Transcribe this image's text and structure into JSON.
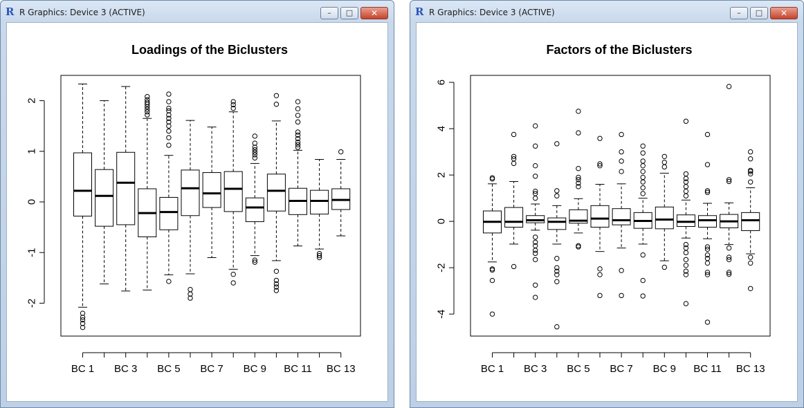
{
  "windows": [
    {
      "title": "R Graphics: Device 3 (ACTIVE)",
      "app_icon": "R",
      "controls": {
        "minimize": "minimize-icon",
        "maximize": "maximize-icon",
        "close": "close-icon"
      }
    },
    {
      "title": "R Graphics: Device 3 (ACTIVE)",
      "app_icon": "R",
      "controls": {
        "minimize": "minimize-icon",
        "maximize": "maximize-icon",
        "close": "close-icon"
      }
    }
  ],
  "chart_data": [
    {
      "type": "box",
      "title": "Loadings of the Biclusters",
      "xlabel": "",
      "ylabel": "",
      "ylim": [
        -2.65,
        2.5
      ],
      "yticks": [
        "-2",
        "-1",
        "0",
        "1",
        "2"
      ],
      "ytick_values": [
        -2,
        -1,
        0,
        1,
        2
      ],
      "xtick_labels": [
        "BC 1",
        "BC 3",
        "BC 5",
        "BC 7",
        "BC 9",
        "BC 11",
        "BC 13"
      ],
      "categories": [
        "BC 1",
        "BC 2",
        "BC 3",
        "BC 4",
        "BC 5",
        "BC 6",
        "BC 7",
        "BC 8",
        "BC 9",
        "BC 10",
        "BC 11",
        "BC 12",
        "BC 13"
      ],
      "boxes": [
        {
          "min": -2.08,
          "q1": -0.28,
          "median": 0.22,
          "q3": 0.97,
          "max": 2.33,
          "outliers": [
            -2.2,
            -2.28,
            -2.33,
            -2.4,
            -2.48
          ]
        },
        {
          "min": -1.62,
          "q1": -0.48,
          "median": 0.12,
          "q3": 0.64,
          "max": 2.0,
          "outliers": []
        },
        {
          "min": -1.76,
          "q1": -0.45,
          "median": 0.38,
          "q3": 0.98,
          "max": 2.28,
          "outliers": []
        },
        {
          "min": -1.74,
          "q1": -0.69,
          "median": -0.22,
          "q3": 0.26,
          "max": 1.65,
          "outliers": [
            1.72,
            1.78,
            1.83,
            1.88,
            1.93,
            1.97,
            2.02,
            2.08
          ]
        },
        {
          "min": -1.44,
          "q1": -0.55,
          "median": -0.2,
          "q3": 0.09,
          "max": 0.92,
          "outliers": [
            1.12,
            1.27,
            1.4,
            1.5,
            1.58,
            1.65,
            1.72,
            1.8,
            1.85,
            1.98,
            2.13,
            -1.57
          ]
        },
        {
          "min": -1.42,
          "q1": -0.27,
          "median": 0.27,
          "q3": 0.63,
          "max": 1.61,
          "outliers": [
            -1.73,
            -1.82,
            -1.9
          ]
        },
        {
          "min": -1.1,
          "q1": -0.11,
          "median": 0.17,
          "q3": 0.58,
          "max": 1.48,
          "outliers": []
        },
        {
          "min": -1.33,
          "q1": -0.19,
          "median": 0.26,
          "q3": 0.6,
          "max": 1.78,
          "outliers": [
            1.85,
            1.92,
            1.98,
            -1.43,
            -1.6
          ]
        },
        {
          "min": -1.06,
          "q1": -0.39,
          "median": -0.11,
          "q3": 0.08,
          "max": 0.76,
          "outliers": [
            0.87,
            0.93,
            0.98,
            1.03,
            1.08,
            1.16,
            1.3,
            -1.15,
            -1.19
          ]
        },
        {
          "min": -1.16,
          "q1": -0.18,
          "median": 0.22,
          "q3": 0.55,
          "max": 1.6,
          "outliers": [
            1.93,
            2.1,
            -1.37,
            -1.55,
            -1.62,
            -1.68,
            -1.75
          ]
        },
        {
          "min": -0.87,
          "q1": -0.25,
          "median": 0.02,
          "q3": 0.27,
          "max": 1.02,
          "outliers": [
            1.08,
            1.13,
            1.18,
            1.25,
            1.32,
            1.38,
            1.58,
            1.71,
            1.84,
            1.98
          ]
        },
        {
          "min": -0.93,
          "q1": -0.24,
          "median": 0.02,
          "q3": 0.23,
          "max": 0.84,
          "outliers": [
            -1.02,
            -1.06,
            -1.1
          ]
        },
        {
          "min": -0.67,
          "q1": -0.15,
          "median": 0.04,
          "q3": 0.26,
          "max": 0.84,
          "outliers": [
            0.99
          ]
        }
      ]
    },
    {
      "type": "box",
      "title": "Factors of the Biclusters",
      "xlabel": "",
      "ylabel": "",
      "ylim": [
        -4.95,
        6.3
      ],
      "yticks": [
        "-4",
        "-2",
        "0",
        "2",
        "4",
        "6"
      ],
      "ytick_values": [
        -4,
        -2,
        0,
        2,
        4,
        6
      ],
      "xtick_labels": [
        "BC 1",
        "BC 3",
        "BC 5",
        "BC 7",
        "BC 9",
        "BC 11",
        "BC 13"
      ],
      "categories": [
        "BC 1",
        "BC 2",
        "BC 3",
        "BC 4",
        "BC 5",
        "BC 6",
        "BC 7",
        "BC 8",
        "BC 9",
        "BC 10",
        "BC 11",
        "BC 12",
        "BC 13"
      ],
      "boxes": [
        {
          "min": -1.75,
          "q1": -0.5,
          "median": -0.02,
          "q3": 0.45,
          "max": 1.62,
          "outliers": [
            1.88,
            1.83,
            -2.05,
            -2.1,
            -2.55,
            -4.0
          ]
        },
        {
          "min": -0.98,
          "q1": -0.25,
          "median": -0.02,
          "q3": 0.6,
          "max": 1.72,
          "outliers": [
            2.5,
            2.7,
            2.8,
            3.75,
            -1.95
          ]
        },
        {
          "min": -0.38,
          "q1": -0.06,
          "median": 0.05,
          "q3": 0.25,
          "max": 0.75,
          "outliers": [
            1.0,
            1.2,
            1.3,
            1.95,
            2.4,
            3.25,
            4.12,
            -0.68,
            -0.9,
            -1.05,
            -1.25,
            -1.38,
            -1.65,
            -2.75,
            -3.28
          ]
        },
        {
          "min": -0.98,
          "q1": -0.35,
          "median": -0.02,
          "q3": 0.15,
          "max": 0.68,
          "outliers": [
            1.1,
            1.32,
            3.35,
            -1.6,
            -2.0,
            -2.15,
            -2.3,
            -2.6,
            -4.55
          ]
        },
        {
          "min": -0.5,
          "q1": -0.08,
          "median": 0.03,
          "q3": 0.5,
          "max": 0.98,
          "outliers": [
            1.5,
            1.65,
            1.8,
            1.9,
            2.28,
            3.82,
            4.75,
            -1.05,
            -1.1
          ]
        },
        {
          "min": -1.3,
          "q1": -0.25,
          "median": 0.12,
          "q3": 0.68,
          "max": 1.6,
          "outliers": [
            2.4,
            2.48,
            3.58,
            -2.05,
            -2.3,
            -3.2
          ]
        },
        {
          "min": -1.15,
          "q1": -0.15,
          "median": 0.05,
          "q3": 0.55,
          "max": 1.62,
          "outliers": [
            2.15,
            2.6,
            3.0,
            3.75,
            -2.12,
            -3.2
          ]
        },
        {
          "min": -0.98,
          "q1": -0.3,
          "median": 0.02,
          "q3": 0.38,
          "max": 1.0,
          "outliers": [
            1.2,
            1.45,
            1.7,
            1.9,
            2.15,
            2.4,
            2.6,
            2.95,
            3.25,
            -1.45,
            -2.55,
            -3.22
          ]
        },
        {
          "min": -1.7,
          "q1": -0.32,
          "median": 0.08,
          "q3": 0.62,
          "max": 2.08,
          "outliers": [
            2.35,
            2.55,
            2.8,
            -1.98
          ]
        },
        {
          "min": -0.72,
          "q1": -0.22,
          "median": -0.02,
          "q3": 0.28,
          "max": 0.92,
          "outliers": [
            1.1,
            1.3,
            1.5,
            1.7,
            1.85,
            2.05,
            4.32,
            -1.0,
            -1.15,
            -1.35,
            -1.65,
            -1.9,
            -2.15,
            -2.3,
            -3.55
          ]
        },
        {
          "min": -0.75,
          "q1": -0.25,
          "median": 0.05,
          "q3": 0.25,
          "max": 0.78,
          "outliers": [
            1.25,
            1.32,
            2.45,
            3.75,
            -1.1,
            -1.2,
            -1.45,
            -1.6,
            -1.8,
            -2.2,
            -2.3,
            -4.35
          ]
        },
        {
          "min": -1.0,
          "q1": -0.28,
          "median": 0.0,
          "q3": 0.3,
          "max": 0.8,
          "outliers": [
            1.72,
            1.8,
            5.82,
            -1.15,
            -1.55,
            -1.65,
            -2.2,
            -2.28
          ]
        },
        {
          "min": -1.4,
          "q1": -0.4,
          "median": 0.05,
          "q3": 0.38,
          "max": 1.45,
          "outliers": [
            1.7,
            2.05,
            2.15,
            2.2,
            2.7,
            3.0,
            -1.55,
            -1.8,
            -2.9
          ]
        }
      ]
    }
  ]
}
